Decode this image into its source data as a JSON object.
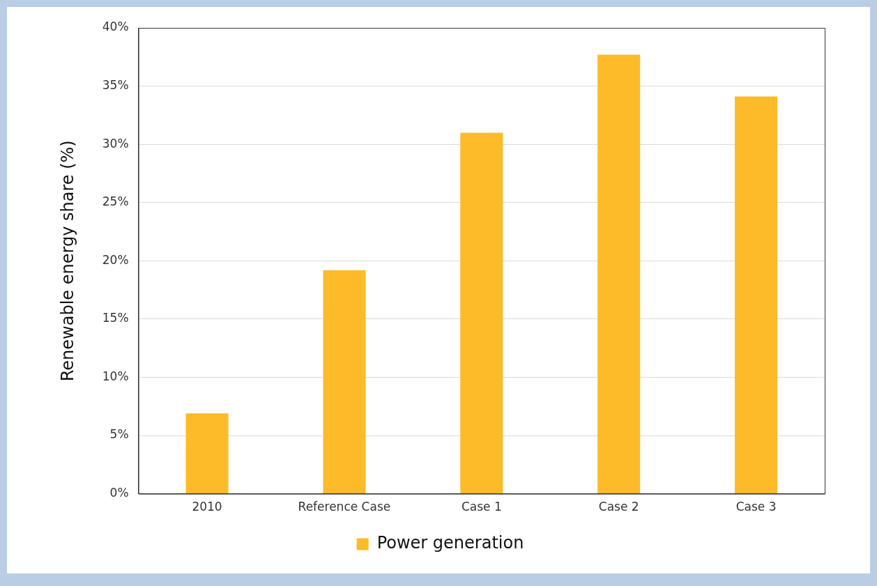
{
  "chart_data": {
    "type": "bar",
    "ylabel": "Renewable energy share (%)",
    "categories": [
      "2010",
      "Reference Case",
      "Case 1",
      "Case 2",
      "Case 3"
    ],
    "series": [
      {
        "name": "Power generation",
        "color": "#fdbb2a",
        "values": [
          6.9,
          19.2,
          31.0,
          37.7,
          34.1
        ]
      }
    ],
    "ylim": [
      0,
      40
    ],
    "yticks": [
      {
        "value": 0,
        "label": "0%"
      },
      {
        "value": 5,
        "label": "5%"
      },
      {
        "value": 10,
        "label": "10%"
      },
      {
        "value": 15,
        "label": "15%"
      },
      {
        "value": 20,
        "label": "20%"
      },
      {
        "value": 25,
        "label": "25%"
      },
      {
        "value": 30,
        "label": "30%"
      },
      {
        "value": 35,
        "label": "35%"
      },
      {
        "value": 40,
        "label": "40%"
      }
    ],
    "grid": "y",
    "legend": "bottom"
  }
}
